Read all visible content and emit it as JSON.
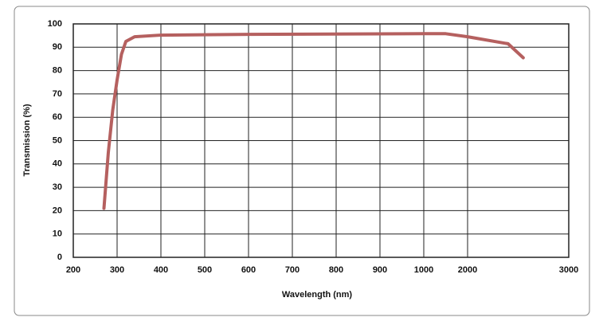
{
  "chart_data": {
    "type": "line",
    "x_label": "Wavelength (nm)",
    "y_label": "Transmission (%)",
    "x": [
      270,
      280,
      290,
      300,
      310,
      320,
      340,
      400,
      600,
      1000,
      1500,
      2000,
      2400,
      2550
    ],
    "series": [
      {
        "name": "Transmission",
        "color": "#b5605f",
        "values": [
          21,
          45,
          63,
          76,
          87,
          92.5,
          94.5,
          95.2,
          95.5,
          95.8,
          95.8,
          94.5,
          91.5,
          85.5
        ]
      }
    ],
    "xlim": [
      200,
      3000
    ],
    "xticks": [
      200,
      300,
      400,
      500,
      600,
      700,
      800,
      900,
      1000,
      2000,
      3000
    ],
    "ylim": [
      0,
      100
    ],
    "yticks": [
      0,
      10,
      20,
      30,
      40,
      50,
      60,
      70,
      80,
      90,
      100
    ],
    "grid": true
  }
}
